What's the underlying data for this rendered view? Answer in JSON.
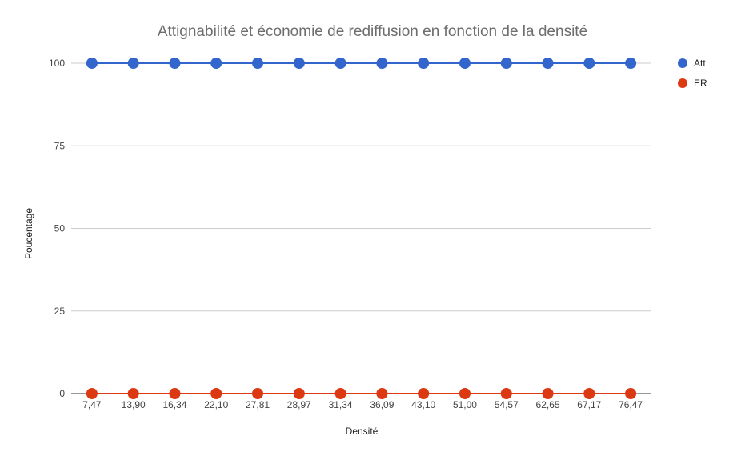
{
  "chart_data": {
    "type": "line",
    "title": "Attignabilité et économie de rediffusion en fonction de la densité",
    "xlabel": "Densité",
    "ylabel": "Poucentage",
    "categories": [
      "7,47",
      "13,90",
      "16,34",
      "22,10",
      "27,81",
      "28,97",
      "31,34",
      "36,09",
      "43,10",
      "51,00",
      "54,57",
      "62,65",
      "67,17",
      "76,47"
    ],
    "y_ticks": [
      "0",
      "25",
      "50",
      "75",
      "100"
    ],
    "ylim": [
      0,
      100
    ],
    "grid": true,
    "legend_position": "right",
    "series": [
      {
        "name": "Att",
        "color": "#3366cc",
        "values": [
          100,
          100,
          100,
          100,
          100,
          100,
          100,
          100,
          100,
          100,
          100,
          100,
          100,
          100
        ]
      },
      {
        "name": "ER",
        "color": "#dc3912",
        "values": [
          0,
          0,
          0,
          0,
          0,
          0,
          0,
          0,
          0,
          0,
          0,
          0,
          0,
          0
        ]
      }
    ]
  }
}
